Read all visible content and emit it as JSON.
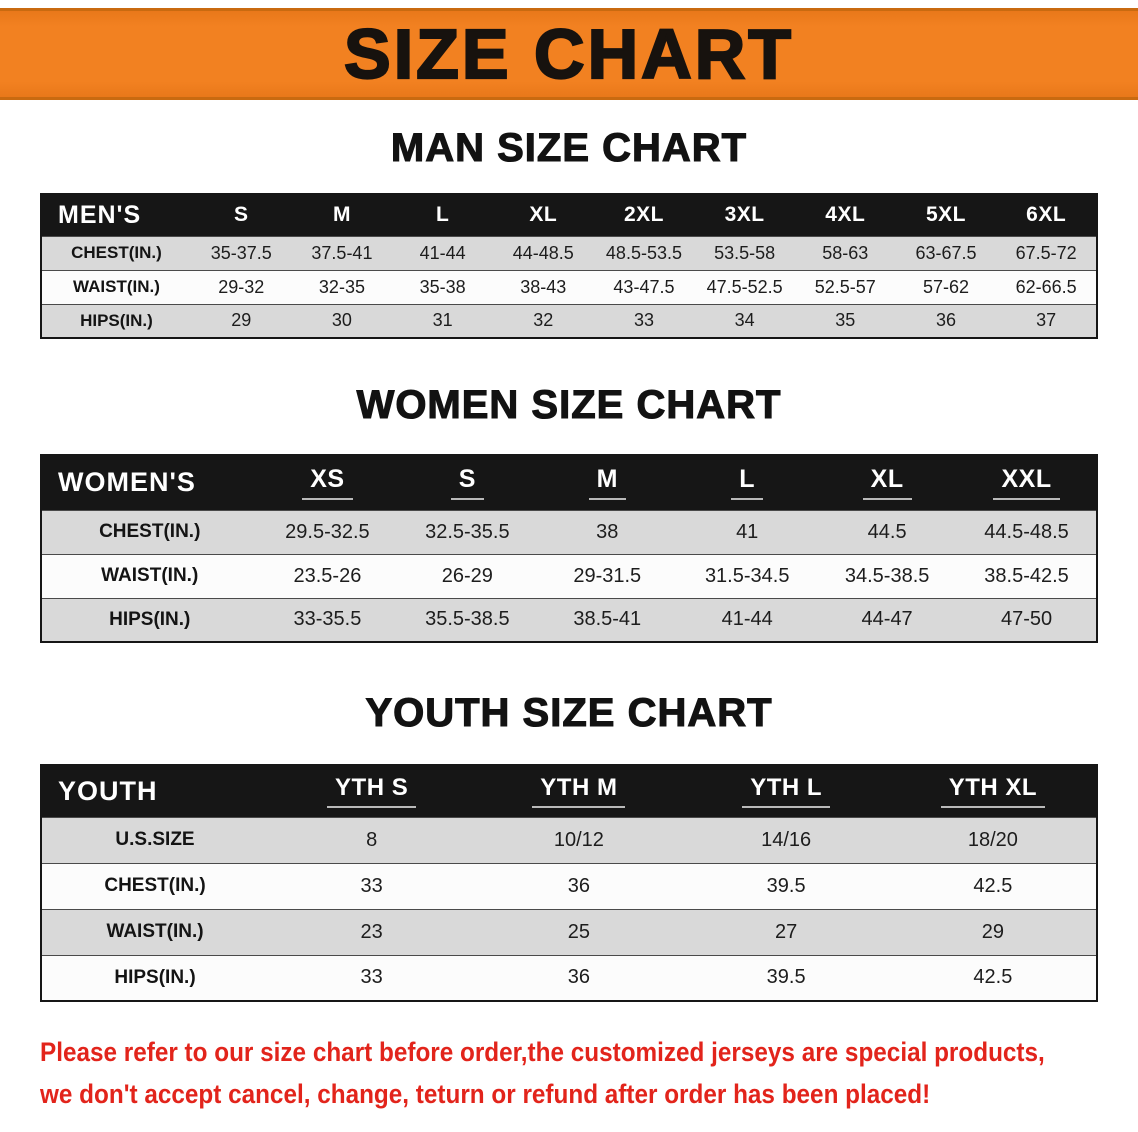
{
  "banner": {
    "title": "SIZE CHART"
  },
  "colors": {
    "banner-bg": "#F28121",
    "banner-edge": "#C96A10",
    "header-bg": "#161616",
    "row-gray": "#D9D9D9",
    "row-white": "#FCFCFC",
    "footer-red": "#E2241B",
    "ink": "#1A1A1A"
  },
  "chart_data": [
    {
      "type": "table",
      "title": "MAN SIZE CHART",
      "columns": [
        "MEN'S",
        "S",
        "M",
        "L",
        "XL",
        "2XL",
        "3XL",
        "4XL",
        "5XL",
        "6XL"
      ],
      "rows": [
        [
          "CHEST(IN.)",
          "35-37.5",
          "37.5-41",
          "41-44",
          "44-48.5",
          "48.5-53.5",
          "53.5-58",
          "58-63",
          "63-67.5",
          "67.5-72"
        ],
        [
          "WAIST(IN.)",
          "29-32",
          "32-35",
          "35-38",
          "38-43",
          "43-47.5",
          "47.5-52.5",
          "52.5-57",
          "57-62",
          "62-66.5"
        ],
        [
          "HIPS(IN.)",
          "29",
          "30",
          "31",
          "32",
          "33",
          "34",
          "35",
          "36",
          "37"
        ]
      ]
    },
    {
      "type": "table",
      "title": "WOMEN SIZE CHART",
      "columns": [
        "WOMEN'S",
        "XS",
        "S",
        "M",
        "L",
        "XL",
        "XXL"
      ],
      "rows": [
        [
          "CHEST(IN.)",
          "29.5-32.5",
          "32.5-35.5",
          "38",
          "41",
          "44.5",
          "44.5-48.5"
        ],
        [
          "WAIST(IN.)",
          "23.5-26",
          "26-29",
          "29-31.5",
          "31.5-34.5",
          "34.5-38.5",
          "38.5-42.5"
        ],
        [
          "HIPS(IN.)",
          "33-35.5",
          "35.5-38.5",
          "38.5-41",
          "41-44",
          "44-47",
          "47-50"
        ]
      ]
    },
    {
      "type": "table",
      "title": "YOUTH SIZE CHART",
      "columns": [
        "YOUTH",
        "YTH S",
        "YTH M",
        "YTH L",
        "YTH XL"
      ],
      "rows": [
        [
          "U.S.SIZE",
          "8",
          "10/12",
          "14/16",
          "18/20"
        ],
        [
          "CHEST(IN.)",
          "33",
          "36",
          "39.5",
          "42.5"
        ],
        [
          "WAIST(IN.)",
          "23",
          "25",
          "27",
          "29"
        ],
        [
          "HIPS(IN.)",
          "33",
          "36",
          "39.5",
          "42.5"
        ]
      ]
    }
  ],
  "footer": {
    "lines": [
      "Please refer to our size chart before order,the customized jerseys are special products,",
      "we don't accept cancel, change, teturn or refund after order has been placed!"
    ]
  }
}
